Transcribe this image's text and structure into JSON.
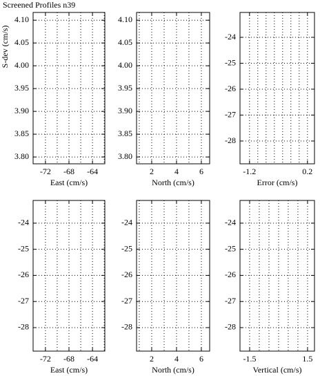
{
  "title": "Screened Profiles n39",
  "chart_data": [
    {
      "type": "grid-panel",
      "xlabel": "East (cm/s)",
      "ylabel": "S-dev (cm/s)",
      "xlim": [
        -74.1,
        -61.9
      ],
      "xticks": [
        -72,
        -68,
        -64
      ],
      "xgrid": [
        -72,
        -70,
        -68,
        -66,
        -64,
        -62
      ],
      "ylim": [
        3.785,
        4.117
      ],
      "yticks": [
        {
          "value": 3.8,
          "label": "3.80"
        },
        3.85,
        {
          "value": 3.9,
          "label": "3.90"
        },
        3.95,
        {
          "value": 4.0,
          "label": "4.00"
        },
        4.05,
        {
          "value": 4.1,
          "label": "4.10"
        }
      ]
    },
    {
      "type": "grid-panel",
      "xlabel": "North (cm/s)",
      "xlim": [
        0.78,
        6.67
      ],
      "xticks": [
        2,
        4,
        6
      ],
      "xgrid": [
        1,
        2,
        3,
        4,
        5,
        6
      ],
      "ylim": [
        3.785,
        4.117
      ],
      "yticks": [
        {
          "value": 3.8,
          "label": "3.80"
        },
        3.85,
        {
          "value": 3.9,
          "label": "3.90"
        },
        3.95,
        {
          "value": 4.0,
          "label": "4.00"
        },
        4.05,
        {
          "value": 4.1,
          "label": "4.10"
        }
      ]
    },
    {
      "type": "grid-panel",
      "xlabel": "Error (cm/s)",
      "xlim": [
        -1.43,
        0.37
      ],
      "xticks": [
        -1.2,
        0.2
      ],
      "xgrid": [
        -1.2,
        -1.0,
        -0.8,
        -0.6,
        -0.4,
        -0.2,
        0,
        0.2
      ],
      "ylim": [
        -28.88,
        -23.04
      ],
      "yticks": [
        -28,
        -27,
        -26,
        -25,
        -24
      ]
    },
    {
      "type": "grid-panel",
      "xlabel": "East (cm/s)",
      "xlim": [
        -74.1,
        -61.9
      ],
      "xticks": [
        -72,
        -68,
        -64
      ],
      "xgrid": [
        -72,
        -70,
        -68,
        -66,
        -64,
        -62
      ],
      "ylim": [
        -28.9,
        -23.13
      ],
      "yticks": [
        -28,
        -27,
        -26,
        -25,
        -24
      ]
    },
    {
      "type": "grid-panel",
      "xlabel": "North (cm/s)",
      "xlim": [
        0.78,
        6.67
      ],
      "xticks": [
        2,
        4,
        6
      ],
      "xgrid": [
        1,
        2,
        3,
        4,
        5,
        6
      ],
      "ylim": [
        -28.9,
        -23.13
      ],
      "yticks": [
        -28,
        -27,
        -26,
        -25,
        -24
      ]
    },
    {
      "type": "grid-panel",
      "xlabel": "Vertical (cm/s)",
      "xlim": [
        -2.0,
        1.86
      ],
      "xticks": [
        -1.5,
        1.5
      ],
      "xgrid": [
        -1.5,
        -1.0,
        -0.5,
        0,
        0.5,
        1.0,
        1.5
      ],
      "ylim": [
        -28.9,
        -23.13
      ],
      "yticks": [
        -28,
        -27,
        -26,
        -25,
        -24
      ]
    }
  ]
}
